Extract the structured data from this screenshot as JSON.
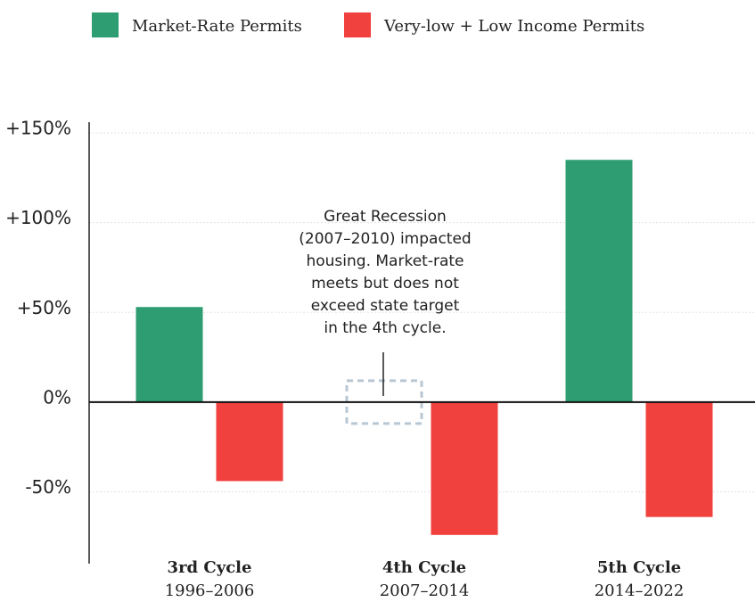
{
  "chart_data": {
    "type": "bar",
    "categories": [
      "3rd Cycle",
      "4th Cycle",
      "5th Cycle"
    ],
    "category_periods": [
      "1996–2006",
      "2007–2014",
      "2014–2022"
    ],
    "series": [
      {
        "name": "Market-Rate Permits",
        "color": "#2e9e72",
        "values": [
          53,
          0,
          135
        ]
      },
      {
        "name": "Very-low + Low Income Permits",
        "color": "#f0413e",
        "values": [
          -44,
          -74,
          -64
        ]
      }
    ],
    "ylim": [
      -90,
      156
    ],
    "yticks": [
      {
        "value": 150,
        "label": "+150%"
      },
      {
        "value": 100,
        "label": "+100%"
      },
      {
        "value": 50,
        "label": "+50%"
      },
      {
        "value": 0,
        "label": "0%"
      },
      {
        "value": -50,
        "label": "-50%"
      }
    ],
    "grid": true,
    "annotation": [
      "Great Recession",
      "(2007–2010) impacted",
      "housing. Market-rate",
      "meets but does not",
      "exceed state target",
      "in the 4th cycle."
    ]
  }
}
